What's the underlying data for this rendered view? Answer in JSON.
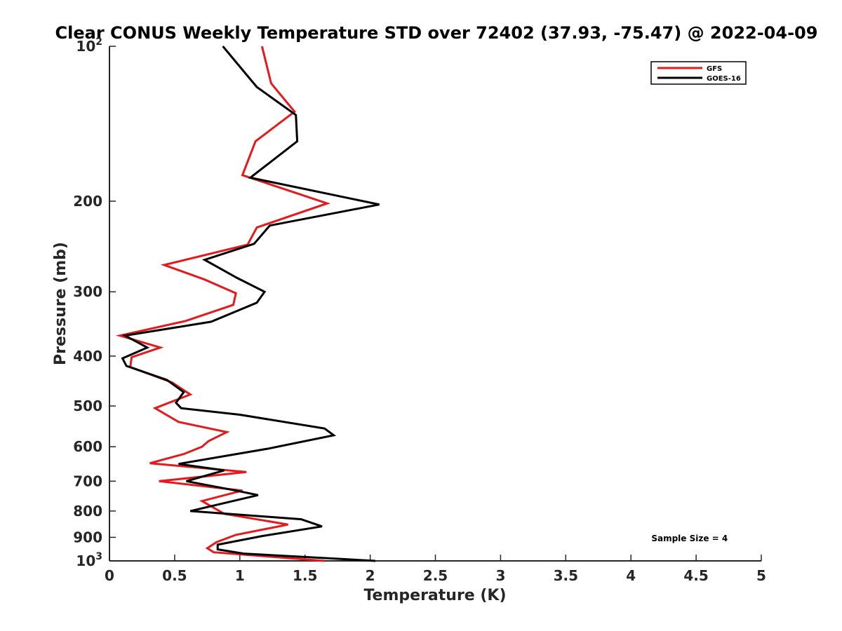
{
  "chart_data": {
    "type": "line",
    "title": "Clear CONUS Weekly Temperature STD over 72402 (37.93, -75.47) @ 2022-04-09",
    "xlabel": "Temperature (K)",
    "ylabel": "Pressure (mb)",
    "xlim": [
      0,
      5
    ],
    "ylim": [
      100,
      1000
    ],
    "y_scale": "log",
    "y_reversed": true,
    "grid": false,
    "legend_position": "top-right",
    "x_ticks": [
      {
        "value": 0,
        "label": "0"
      },
      {
        "value": 0.5,
        "label": "0.5"
      },
      {
        "value": 1,
        "label": "1"
      },
      {
        "value": 1.5,
        "label": "1.5"
      },
      {
        "value": 2,
        "label": "2"
      },
      {
        "value": 2.5,
        "label": "2.5"
      },
      {
        "value": 3,
        "label": "3"
      },
      {
        "value": 3.5,
        "label": "3.5"
      },
      {
        "value": 4,
        "label": "4"
      },
      {
        "value": 4.5,
        "label": "4.5"
      },
      {
        "value": 5,
        "label": "5"
      }
    ],
    "y_ticks": [
      {
        "value": 100,
        "label": "10",
        "sup": "2"
      },
      {
        "value": 200,
        "label": "200",
        "sup": ""
      },
      {
        "value": 300,
        "label": "300",
        "sup": ""
      },
      {
        "value": 400,
        "label": "400",
        "sup": ""
      },
      {
        "value": 500,
        "label": "500",
        "sup": ""
      },
      {
        "value": 600,
        "label": "600",
        "sup": ""
      },
      {
        "value": 700,
        "label": "700",
        "sup": ""
      },
      {
        "value": 800,
        "label": "800",
        "sup": ""
      },
      {
        "value": 900,
        "label": "900",
        "sup": ""
      },
      {
        "value": 1000,
        "label": "10",
        "sup": "3"
      }
    ],
    "series": [
      {
        "name": "GFS",
        "color": "#e41a1c",
        "points": [
          [
            1.17,
            100
          ],
          [
            1.24,
            118
          ],
          [
            1.42,
            134
          ],
          [
            1.12,
            153
          ],
          [
            1.02,
            178
          ],
          [
            1.67,
            202
          ],
          [
            1.13,
            225
          ],
          [
            1.06,
            243
          ],
          [
            0.42,
            266
          ],
          [
            0.73,
            284
          ],
          [
            0.97,
            302
          ],
          [
            0.95,
            318
          ],
          [
            0.58,
            342
          ],
          [
            0.08,
            365
          ],
          [
            0.39,
            385
          ],
          [
            0.17,
            402
          ],
          [
            0.16,
            420
          ],
          [
            0.48,
            450
          ],
          [
            0.62,
            475
          ],
          [
            0.35,
            505
          ],
          [
            0.53,
            537
          ],
          [
            0.9,
            562
          ],
          [
            0.76,
            585
          ],
          [
            0.71,
            600
          ],
          [
            0.57,
            620
          ],
          [
            0.31,
            646
          ],
          [
            1.05,
            672
          ],
          [
            0.38,
            700
          ],
          [
            1.02,
            730
          ],
          [
            0.71,
            765
          ],
          [
            0.88,
            810
          ],
          [
            1.37,
            850
          ],
          [
            0.97,
            890
          ],
          [
            0.82,
            920
          ],
          [
            0.75,
            945
          ],
          [
            0.8,
            962
          ],
          [
            1.65,
            1000
          ]
        ]
      },
      {
        "name": "GOES-16",
        "color": "#000000",
        "points": [
          [
            0.87,
            100
          ],
          [
            1.13,
            120
          ],
          [
            1.43,
            136
          ],
          [
            1.44,
            153
          ],
          [
            1.08,
            180
          ],
          [
            2.07,
            203
          ],
          [
            1.23,
            223
          ],
          [
            1.11,
            242
          ],
          [
            0.73,
            260
          ],
          [
            0.98,
            282
          ],
          [
            1.19,
            300
          ],
          [
            1.13,
            315
          ],
          [
            0.78,
            343
          ],
          [
            0.12,
            365
          ],
          [
            0.29,
            385
          ],
          [
            0.1,
            404
          ],
          [
            0.13,
            418
          ],
          [
            0.44,
            445
          ],
          [
            0.57,
            470
          ],
          [
            0.51,
            493
          ],
          [
            0.55,
            505
          ],
          [
            1.0,
            520
          ],
          [
            1.65,
            553
          ],
          [
            1.72,
            570
          ],
          [
            1.22,
            605
          ],
          [
            0.53,
            648
          ],
          [
            0.88,
            667
          ],
          [
            0.59,
            700
          ],
          [
            0.97,
            730
          ],
          [
            1.14,
            745
          ],
          [
            0.62,
            800
          ],
          [
            1.47,
            830
          ],
          [
            1.63,
            857
          ],
          [
            1.17,
            895
          ],
          [
            0.83,
            930
          ],
          [
            0.83,
            950
          ],
          [
            1.03,
            968
          ],
          [
            2.04,
            1000
          ]
        ]
      }
    ],
    "annotations": [
      {
        "text": "Sample Size = 4",
        "x": 4.45,
        "y": 905
      }
    ]
  }
}
